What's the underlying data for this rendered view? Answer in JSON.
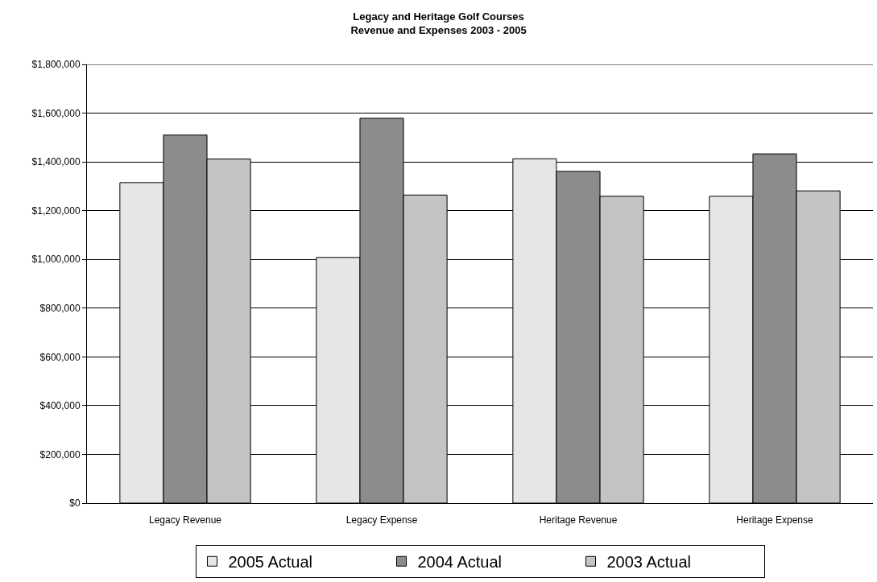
{
  "chart_data": {
    "type": "bar",
    "title": "Legacy and Heritage Golf Courses\nRevenue and Expenses 2003 - 2005",
    "categories": [
      "Legacy Revenue",
      "Legacy Expense",
      "Heritage Revenue",
      "Heritage Expense"
    ],
    "series": [
      {
        "name": "2005 Actual",
        "color": "#e6e6e6",
        "values": [
          1315000,
          1008000,
          1413000,
          1259000
        ]
      },
      {
        "name": "2004 Actual",
        "color": "#8c8c8c",
        "values": [
          1510000,
          1579000,
          1361000,
          1433000
        ]
      },
      {
        "name": "2003 Actual",
        "color": "#c4c4c4",
        "values": [
          1412000,
          1264000,
          1259000,
          1281000
        ]
      }
    ],
    "ylim": [
      0,
      1800000
    ],
    "yticks": [
      {
        "value": 0,
        "label": "$0"
      },
      {
        "value": 200000,
        "label": "$200,000"
      },
      {
        "value": 400000,
        "label": "$400,000"
      },
      {
        "value": 600000,
        "label": "$600,000"
      },
      {
        "value": 800000,
        "label": "$800,000"
      },
      {
        "value": 1000000,
        "label": "$1,000,000"
      },
      {
        "value": 1200000,
        "label": "$1,200,000"
      },
      {
        "value": 1400000,
        "label": "$1,400,000"
      },
      {
        "value": 1600000,
        "label": "$1,600,000"
      },
      {
        "value": 1800000,
        "label": "$1,800,000"
      }
    ],
    "grid": "y",
    "legend": "bottom"
  }
}
